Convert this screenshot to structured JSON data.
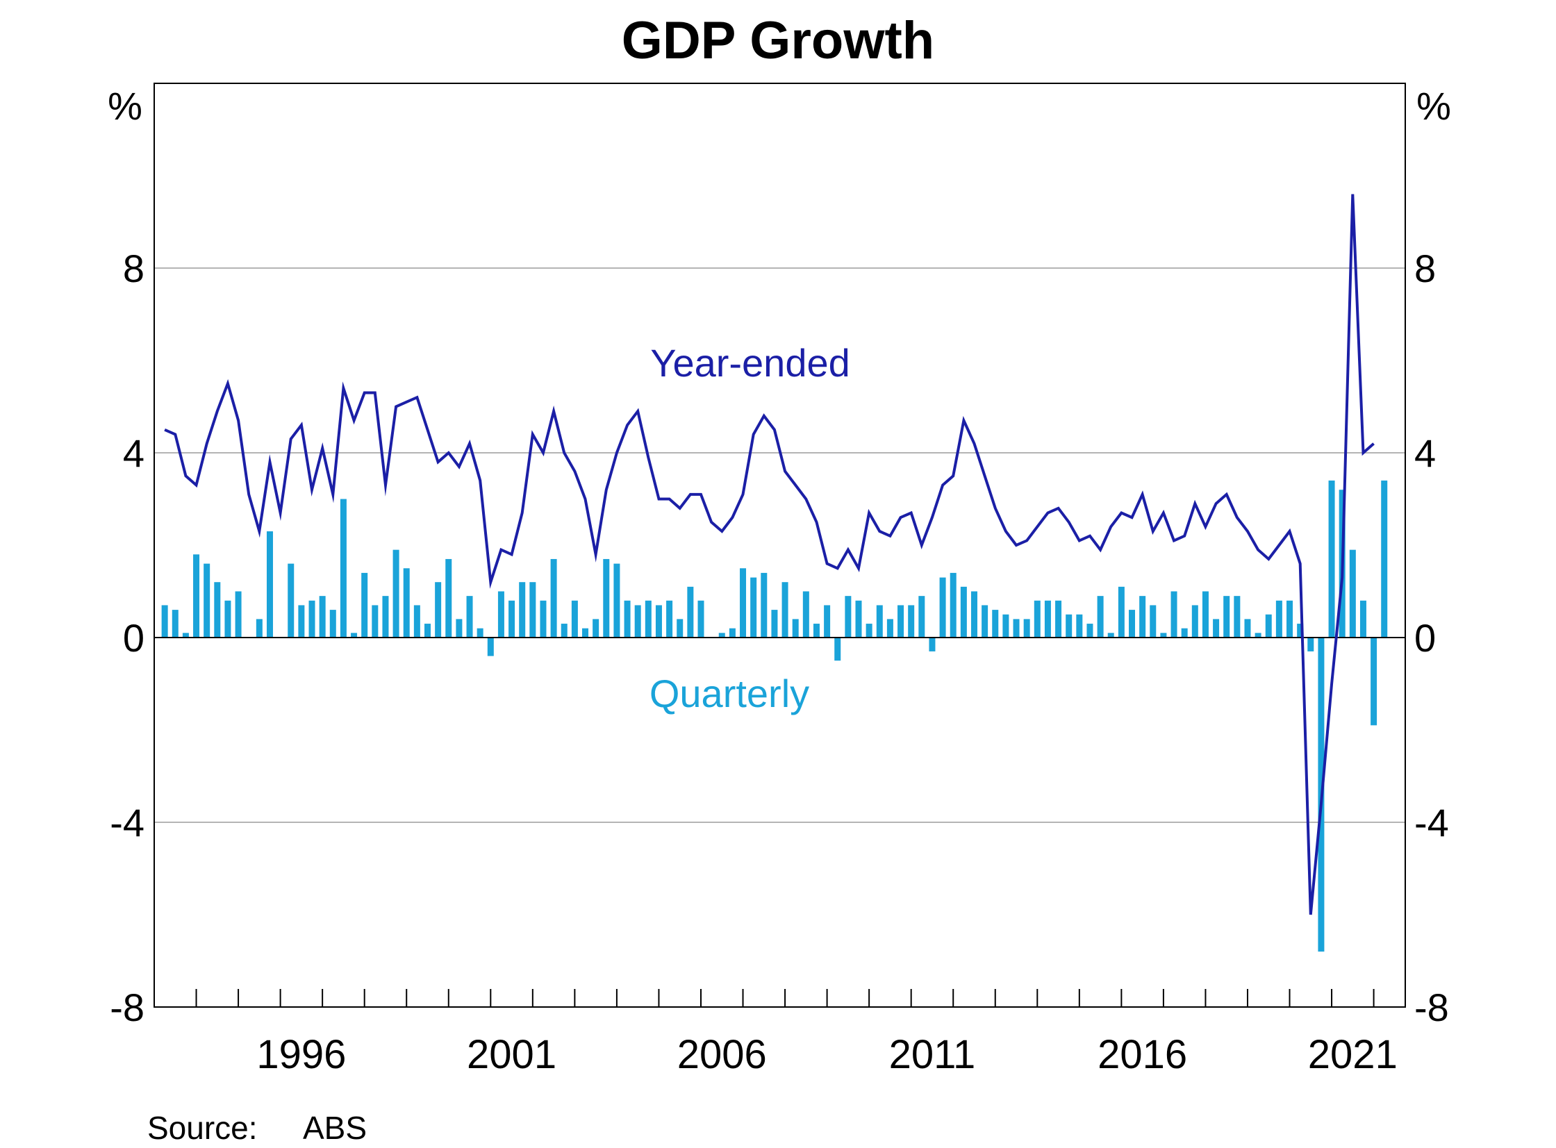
{
  "chart_data": {
    "type": "bar",
    "title": "GDP Growth",
    "source_label": "Source:",
    "source_value": "ABS",
    "ylabel_left": "%",
    "ylabel_right": "%",
    "ylim": [
      -8,
      12
    ],
    "yticks": [
      -8,
      -4,
      0,
      4,
      8
    ],
    "grid": "horizontal",
    "xlim": [
      1993.0,
      2022.75
    ],
    "xticks": [
      1996,
      2001,
      2006,
      2011,
      2016,
      2021
    ],
    "colors": {
      "year_ended": "#1b1fa6",
      "quarterly": "#1aa3d9",
      "grid": "#b4b4b4",
      "axis": "#000000"
    },
    "series": [
      {
        "name": "Year-ended",
        "type": "line",
        "start": 1993.25,
        "step": 0.25,
        "values": [
          4.5,
          4.4,
          3.5,
          3.3,
          4.2,
          4.9,
          5.5,
          4.7,
          3.1,
          2.3,
          3.8,
          2.7,
          4.3,
          4.6,
          3.2,
          4.1,
          3.1,
          5.4,
          4.7,
          5.3,
          5.3,
          3.3,
          5.0,
          5.1,
          5.2,
          4.5,
          3.8,
          4.0,
          3.7,
          4.2,
          3.4,
          1.2,
          1.9,
          1.8,
          2.7,
          4.4,
          4.0,
          4.9,
          4.0,
          3.6,
          3.0,
          1.8,
          3.2,
          4.0,
          4.6,
          4.9,
          3.9,
          3.0,
          3.0,
          2.8,
          3.1,
          3.1,
          2.5,
          2.3,
          2.6,
          3.1,
          4.4,
          4.8,
          4.5,
          3.6,
          3.3,
          3.0,
          2.5,
          1.6,
          1.5,
          1.9,
          1.5,
          2.7,
          2.3,
          2.2,
          2.6,
          2.7,
          2.0,
          2.6,
          3.3,
          3.5,
          4.7,
          4.2,
          3.5,
          2.8,
          2.3,
          2.0,
          2.1,
          2.4,
          2.7,
          2.8,
          2.5,
          2.1,
          2.2,
          1.9,
          2.4,
          2.7,
          2.6,
          3.1,
          2.3,
          2.7,
          2.1,
          2.2,
          2.9,
          2.4,
          2.9,
          3.1,
          2.6,
          2.3,
          1.9,
          1.7,
          2.0,
          2.3,
          1.6,
          -6.0,
          -3.6,
          -1.0,
          1.3,
          9.6,
          4.0,
          4.2
        ]
      },
      {
        "name": "Quarterly",
        "type": "bar",
        "start": 1993.25,
        "step": 0.25,
        "values": [
          0.7,
          0.6,
          0.1,
          1.8,
          1.6,
          1.2,
          0.8,
          1.0,
          0.0,
          0.4,
          2.3,
          0.0,
          1.6,
          0.7,
          0.8,
          0.9,
          0.6,
          3.0,
          0.1,
          1.4,
          0.7,
          0.9,
          1.9,
          1.5,
          0.7,
          0.3,
          1.2,
          1.7,
          0.4,
          0.9,
          0.2,
          -0.4,
          1.0,
          0.8,
          1.2,
          1.2,
          0.8,
          1.7,
          0.3,
          0.8,
          0.2,
          0.4,
          1.7,
          1.6,
          0.8,
          0.7,
          0.8,
          0.7,
          0.8,
          0.4,
          1.1,
          0.8,
          0.0,
          0.1,
          0.2,
          1.5,
          1.3,
          1.4,
          0.6,
          1.2,
          0.4,
          1.0,
          0.3,
          0.7,
          -0.5,
          0.9,
          0.8,
          0.3,
          0.7,
          0.4,
          0.7,
          0.7,
          0.9,
          -0.3,
          1.3,
          1.4,
          1.1,
          1.0,
          0.7,
          0.6,
          0.5,
          0.4,
          0.4,
          0.8,
          0.8,
          0.8,
          0.5,
          0.5,
          0.3,
          0.9,
          0.1,
          1.1,
          0.6,
          0.9,
          0.7,
          0.1,
          1.0,
          0.2,
          0.7,
          1.0,
          0.4,
          0.9,
          0.9,
          0.4,
          0.1,
          0.5,
          0.8,
          0.8,
          0.3,
          -0.3,
          -6.8,
          3.4,
          3.2,
          1.9,
          0.8,
          -1.9,
          3.4
        ]
      }
    ],
    "annotations": [
      {
        "id": "year-ended-label",
        "text": "Year-ended",
        "series": "Year-ended"
      },
      {
        "id": "quarterly-label",
        "text": "Quarterly",
        "series": "Quarterly"
      }
    ]
  }
}
